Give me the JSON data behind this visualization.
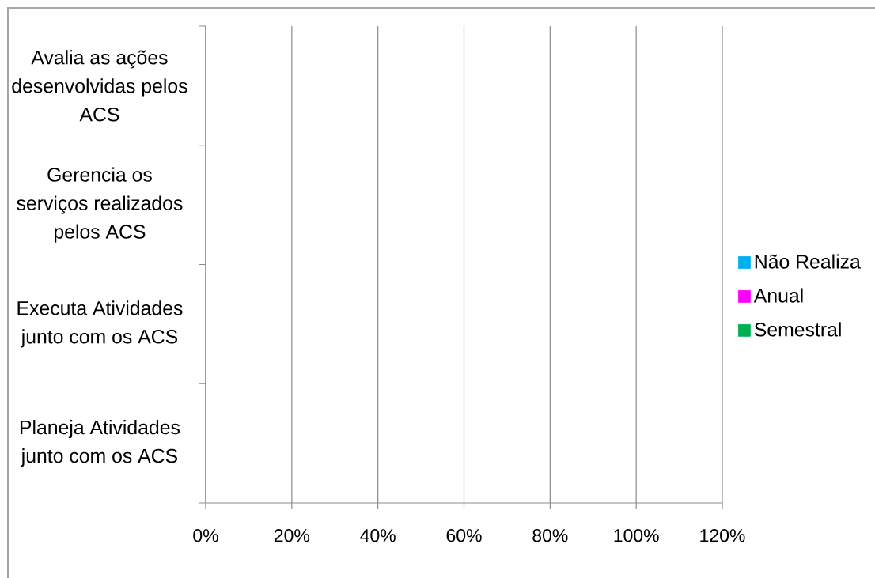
{
  "chart_data": {
    "type": "bar",
    "orientation": "horizontal",
    "categories": [
      "Avalia as ações desenvolvidas pelos ACS",
      "Gerencia os serviços realizados pelos ACS",
      "Executa Atividades junto com os ACS",
      "Planeja Atividades junto com os ACS"
    ],
    "series": [
      {
        "name": "Não Realiza",
        "color": "#00b0f0",
        "values": [
          null,
          null,
          null,
          null
        ]
      },
      {
        "name": "Anual",
        "color": "#ff00ff",
        "values": [
          null,
          null,
          null,
          null
        ]
      },
      {
        "name": "Semestral",
        "color": "#00b050",
        "values": [
          null,
          null,
          null,
          null
        ]
      }
    ],
    "xlim": [
      0,
      120
    ],
    "xticks": [
      {
        "value": 0,
        "label": "0%"
      },
      {
        "value": 20,
        "label": "20%"
      },
      {
        "value": 40,
        "label": "40%"
      },
      {
        "value": 60,
        "label": "60%"
      },
      {
        "value": 80,
        "label": "80%"
      },
      {
        "value": 100,
        "label": "100%"
      },
      {
        "value": 120,
        "label": "120%"
      }
    ],
    "grid": "x",
    "legend": "right"
  }
}
